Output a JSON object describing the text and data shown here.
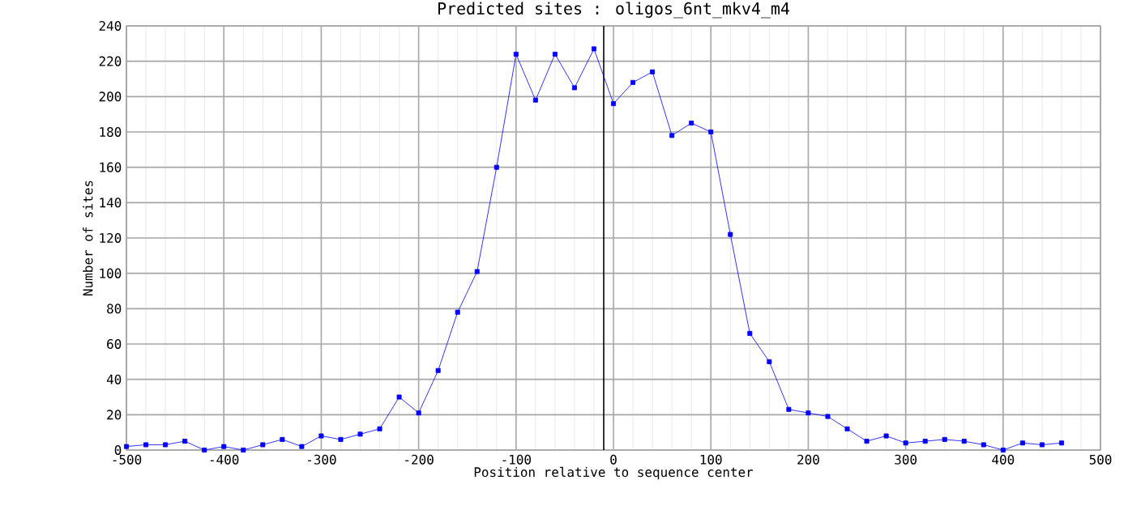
{
  "chart_data": {
    "type": "line",
    "title": "Predicted sites : oligos_6nt_mkv4_m4",
    "xlabel": "Position relative to sequence center",
    "ylabel": "Number of sites",
    "x": [
      -500,
      -480,
      -460,
      -440,
      -420,
      -400,
      -380,
      -360,
      -340,
      -320,
      -300,
      -280,
      -260,
      -240,
      -220,
      -200,
      -180,
      -160,
      -140,
      -120,
      -100,
      -80,
      -60,
      -40,
      -20,
      0,
      20,
      40,
      60,
      80,
      100,
      120,
      140,
      160,
      180,
      200,
      220,
      240,
      260,
      280,
      300,
      320,
      340,
      360,
      380,
      400,
      420,
      440,
      460
    ],
    "series": [
      {
        "color": "#0000ff",
        "values": [
          2,
          3,
          3,
          5,
          0,
          2,
          0,
          3,
          6,
          2,
          8,
          6,
          9,
          12,
          30,
          21,
          45,
          78,
          101,
          160,
          224,
          198,
          224,
          205,
          227,
          196,
          208,
          214,
          178,
          185,
          180,
          122,
          66,
          50,
          23,
          21,
          19,
          12,
          5,
          8,
          4,
          5,
          6,
          5,
          3,
          0,
          4,
          3,
          4
        ]
      }
    ],
    "xlim": [
      -500,
      500
    ],
    "xticks": [
      -500,
      -400,
      -300,
      -200,
      -100,
      0,
      100,
      200,
      300,
      400,
      500
    ],
    "ylim": [
      0,
      240
    ],
    "yticks": [
      0,
      20,
      40,
      60,
      80,
      100,
      120,
      140,
      160,
      180,
      200,
      220,
      240
    ],
    "ref_lines": [
      {
        "axis": "x",
        "value": -10,
        "color": "#000000"
      }
    ],
    "grid": true,
    "marker": "square",
    "line_style": "solid"
  }
}
